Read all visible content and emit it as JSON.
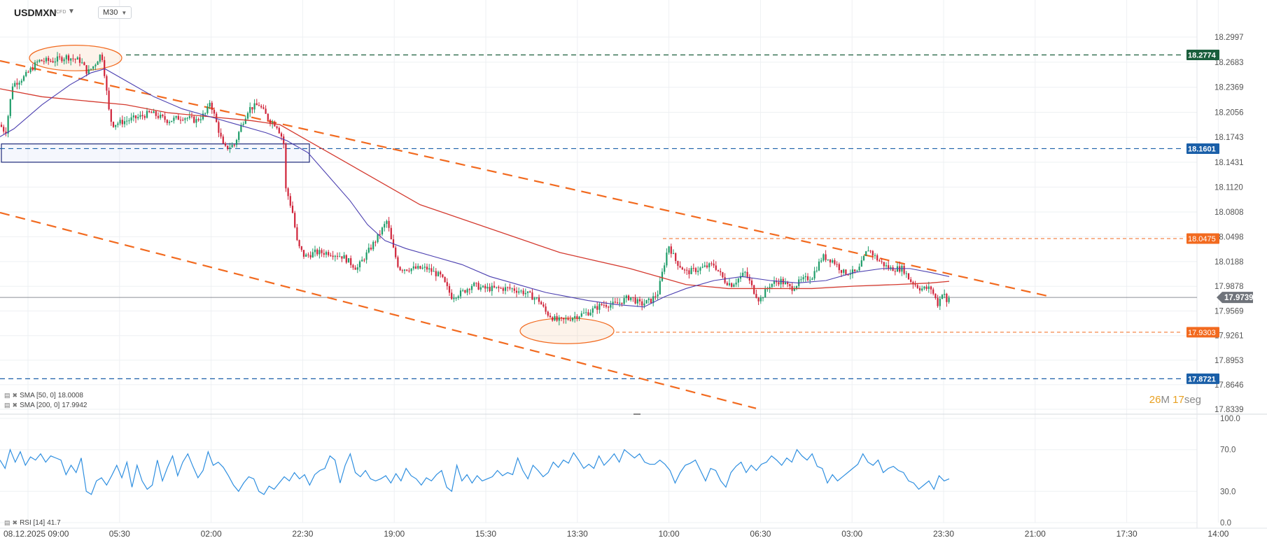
{
  "header": {
    "symbol": "USDMXN",
    "symbol_type": "CFD",
    "timeframe": "M30"
  },
  "indicators": {
    "sma50": {
      "label": "SMA [50, 0]",
      "value": "18.0008",
      "color": "#4b3fb0"
    },
    "sma200": {
      "label": "SMA [200, 0]",
      "value": "17.9942",
      "color": "#d43a2f"
    },
    "rsi": {
      "label": "RSI [14]",
      "value": "41.7",
      "color": "#2f8fe0"
    }
  },
  "countdown": {
    "minutes": "26",
    "minutes_unit": "M",
    "seconds": "17",
    "seconds_unit": "seg"
  },
  "colors": {
    "bull": "#1f9d6a",
    "bear": "#d0243a",
    "trend": "#f26a1f",
    "level_green": "#1a5e3c",
    "level_blue": "#1a5fa8",
    "level_orange": "#f26a1f",
    "current": "#8c8f96"
  },
  "chart_data": [
    {
      "type": "candlestick",
      "title": "",
      "ylim": [
        17.8339,
        18.2997
      ],
      "y_ticks": [
        "18.2997",
        "18.2683",
        "18.2369",
        "18.2056",
        "18.1743",
        "18.1431",
        "18.1120",
        "18.0808",
        "18.0498",
        "18.0188",
        "17.9878",
        "17.9569",
        "17.9261",
        "17.8953",
        "17.8646",
        "17.8339"
      ],
      "x_ticks": [
        "08.12.2025  09:00",
        "05:30",
        "02:00",
        "22:30",
        "19:00",
        "15:30",
        "13:30",
        "10:00",
        "06:30",
        "03:00",
        "23:30",
        "21:00",
        "17:30",
        "14:00"
      ],
      "current_price": 17.9739,
      "current_label": "17.9739",
      "levels": [
        {
          "value": 18.2774,
          "label": "18.2774",
          "style": "dashed",
          "color": "#1a5e3c"
        },
        {
          "value": 18.1601,
          "label": "18.1601",
          "style": "dashed",
          "color": "#1a5fa8"
        },
        {
          "value": 18.0475,
          "label": "18.0475",
          "style": "thin-dashed",
          "color": "#f26a1f"
        },
        {
          "value": 17.9303,
          "label": "17.9303",
          "style": "thin-dashed",
          "color": "#f26a1f"
        },
        {
          "value": 17.8721,
          "label": "17.8721",
          "style": "dashed",
          "color": "#1a5fa8"
        }
      ],
      "path_points": [
        [
          0,
          18.19
        ],
        [
          8,
          18.18
        ],
        [
          18,
          18.24
        ],
        [
          35,
          18.25
        ],
        [
          55,
          18.27
        ],
        [
          75,
          18.27
        ],
        [
          95,
          18.275
        ],
        [
          115,
          18.27
        ],
        [
          125,
          18.255
        ],
        [
          135,
          18.265
        ],
        [
          145,
          18.28
        ],
        [
          150,
          18.25
        ],
        [
          155,
          18.21
        ],
        [
          160,
          18.19
        ],
        [
          180,
          18.195
        ],
        [
          200,
          18.2
        ],
        [
          215,
          18.205
        ],
        [
          240,
          18.195
        ],
        [
          262,
          18.2
        ],
        [
          280,
          18.195
        ],
        [
          295,
          18.205
        ],
        [
          300,
          18.22
        ],
        [
          310,
          18.19
        ],
        [
          320,
          18.16
        ],
        [
          335,
          18.165
        ],
        [
          345,
          18.19
        ],
        [
          355,
          18.21
        ],
        [
          370,
          18.215
        ],
        [
          385,
          18.195
        ],
        [
          395,
          18.19
        ],
        [
          405,
          18.17
        ],
        [
          408,
          18.11
        ],
        [
          412,
          18.1
        ],
        [
          418,
          18.08
        ],
        [
          425,
          18.04
        ],
        [
          435,
          18.025
        ],
        [
          450,
          18.03
        ],
        [
          470,
          18.03
        ],
        [
          490,
          18.025
        ],
        [
          510,
          18.01
        ],
        [
          525,
          18.03
        ],
        [
          540,
          18.05
        ],
        [
          553,
          18.07
        ],
        [
          560,
          18.04
        ],
        [
          570,
          18.01
        ],
        [
          590,
          18.01
        ],
        [
          610,
          18.01
        ],
        [
          630,
          18.0
        ],
        [
          645,
          17.975
        ],
        [
          660,
          17.98
        ],
        [
          675,
          17.99
        ],
        [
          690,
          17.985
        ],
        [
          710,
          17.985
        ],
        [
          730,
          17.985
        ],
        [
          750,
          17.98
        ],
        [
          770,
          17.97
        ],
        [
          780,
          17.955
        ],
        [
          795,
          17.945
        ],
        [
          805,
          17.945
        ],
        [
          820,
          17.95
        ],
        [
          840,
          17.955
        ],
        [
          860,
          17.965
        ],
        [
          880,
          17.965
        ],
        [
          900,
          17.975
        ],
        [
          915,
          17.965
        ],
        [
          930,
          17.97
        ],
        [
          940,
          17.98
        ],
        [
          950,
          18.02
        ],
        [
          955,
          18.04
        ],
        [
          965,
          18.02
        ],
        [
          980,
          18.005
        ],
        [
          1000,
          18.01
        ],
        [
          1020,
          18.015
        ],
        [
          1035,
          17.995
        ],
        [
          1045,
          17.99
        ],
        [
          1065,
          18.005
        ],
        [
          1075,
          17.985
        ],
        [
          1085,
          17.97
        ],
        [
          1100,
          17.99
        ],
        [
          1115,
          17.995
        ],
        [
          1130,
          17.985
        ],
        [
          1145,
          17.995
        ],
        [
          1160,
          18.0
        ],
        [
          1175,
          18.025
        ],
        [
          1190,
          18.02
        ],
        [
          1205,
          18.005
        ],
        [
          1225,
          18.005
        ],
        [
          1240,
          18.035
        ],
        [
          1255,
          18.02
        ],
        [
          1270,
          18.01
        ],
        [
          1290,
          18.01
        ],
        [
          1300,
          17.995
        ],
        [
          1315,
          17.985
        ],
        [
          1330,
          17.985
        ],
        [
          1340,
          17.965
        ],
        [
          1348,
          17.985
        ],
        [
          1352,
          17.965
        ],
        [
          1356,
          17.973
        ]
      ],
      "sma50_points": [
        [
          0,
          18.175
        ],
        [
          20,
          18.185
        ],
        [
          60,
          18.215
        ],
        [
          100,
          18.24
        ],
        [
          130,
          18.255
        ],
        [
          150,
          18.26
        ],
        [
          180,
          18.245
        ],
        [
          220,
          18.225
        ],
        [
          260,
          18.21
        ],
        [
          300,
          18.2
        ],
        [
          340,
          18.19
        ],
        [
          380,
          18.18
        ],
        [
          410,
          18.17
        ],
        [
          440,
          18.155
        ],
        [
          470,
          18.125
        ],
        [
          500,
          18.095
        ],
        [
          525,
          18.065
        ],
        [
          550,
          18.045
        ],
        [
          580,
          18.035
        ],
        [
          620,
          18.025
        ],
        [
          660,
          18.015
        ],
        [
          700,
          18.0
        ],
        [
          740,
          17.99
        ],
        [
          780,
          17.98
        ],
        [
          810,
          17.975
        ],
        [
          840,
          17.97
        ],
        [
          880,
          17.965
        ],
        [
          920,
          17.962
        ],
        [
          950,
          17.975
        ],
        [
          980,
          17.985
        ],
        [
          1020,
          17.995
        ],
        [
          1060,
          18.0
        ],
        [
          1100,
          17.995
        ],
        [
          1140,
          17.992
        ],
        [
          1180,
          17.995
        ],
        [
          1220,
          18.005
        ],
        [
          1260,
          18.01
        ],
        [
          1300,
          18.01
        ],
        [
          1330,
          18.005
        ],
        [
          1356,
          18.0
        ]
      ],
      "sma200_points": [
        [
          0,
          18.235
        ],
        [
          60,
          18.225
        ],
        [
          120,
          18.22
        ],
        [
          180,
          18.215
        ],
        [
          240,
          18.205
        ],
        [
          300,
          18.2
        ],
        [
          360,
          18.195
        ],
        [
          400,
          18.19
        ],
        [
          440,
          18.17
        ],
        [
          480,
          18.15
        ],
        [
          520,
          18.13
        ],
        [
          560,
          18.11
        ],
        [
          600,
          18.09
        ],
        [
          650,
          18.075
        ],
        [
          700,
          18.06
        ],
        [
          750,
          18.045
        ],
        [
          800,
          18.03
        ],
        [
          850,
          18.02
        ],
        [
          900,
          18.01
        ],
        [
          940,
          18.0
        ],
        [
          980,
          17.99
        ],
        [
          1040,
          17.985
        ],
        [
          1100,
          17.985
        ],
        [
          1160,
          17.985
        ],
        [
          1220,
          17.988
        ],
        [
          1280,
          17.99
        ],
        [
          1330,
          17.992
        ],
        [
          1356,
          17.994
        ]
      ],
      "trendlines": [
        {
          "from": [
            0,
            18.27
          ],
          "to": [
            1500,
            17.975
          ]
        },
        {
          "from": [
            0,
            18.08
          ],
          "to": [
            1080,
            17.835
          ]
        }
      ],
      "zones": [
        {
          "type": "rectangle",
          "x": [
            2,
            442
          ],
          "y": [
            18.1431,
            18.166
          ]
        },
        {
          "type": "ellipse",
          "cx": 108,
          "cy": 18.2735,
          "rx": 66,
          "ry": 0.016
        },
        {
          "type": "ellipse",
          "cx": 810,
          "cy": 17.932,
          "rx": 67,
          "ry": 0.016
        }
      ]
    },
    {
      "type": "line",
      "title": "",
      "ylim": [
        0,
        100
      ],
      "y_ticks": [
        "100.0",
        "70.0",
        "30.0",
        "0.0"
      ],
      "series": [
        {
          "name": "RSI [14]",
          "values": [
            60,
            52,
            70,
            58,
            68,
            55,
            63,
            60,
            66,
            58,
            64,
            62,
            60,
            46,
            55,
            48,
            62,
            30,
            27,
            40,
            43,
            36,
            45,
            55,
            43,
            58,
            34,
            55,
            40,
            32,
            36,
            60,
            40,
            53,
            64,
            45,
            58,
            66,
            54,
            43,
            50,
            68,
            55,
            58,
            53,
            45,
            36,
            30,
            38,
            44,
            42,
            30,
            27,
            35,
            32,
            38,
            44,
            40,
            48,
            42,
            46,
            36,
            46,
            50,
            52,
            64,
            60,
            38,
            55,
            66,
            48,
            44,
            50,
            42,
            40,
            42,
            45,
            38,
            47,
            40,
            52,
            45,
            42,
            36,
            43,
            40,
            46,
            50,
            34,
            30,
            55,
            40,
            46,
            38,
            45,
            40,
            42,
            44,
            50,
            45,
            48,
            46,
            62,
            50,
            42,
            55,
            50,
            44,
            48,
            58,
            53,
            60,
            57,
            67,
            60,
            52,
            56,
            52,
            64,
            55,
            60,
            66,
            58,
            70,
            66,
            62,
            66,
            58,
            56,
            56,
            60,
            56,
            50,
            38,
            48,
            55,
            57,
            60,
            50,
            40,
            52,
            50,
            40,
            34,
            48,
            54,
            58,
            48,
            55,
            50,
            56,
            58,
            64,
            60,
            55,
            62,
            58,
            70,
            64,
            60,
            66,
            54,
            52,
            38,
            46,
            40,
            44,
            48,
            52,
            56,
            66,
            58,
            55,
            60,
            48,
            52,
            54,
            50,
            48,
            40,
            38,
            32,
            36,
            40,
            32,
            45,
            40,
            42
          ]
        }
      ]
    }
  ]
}
